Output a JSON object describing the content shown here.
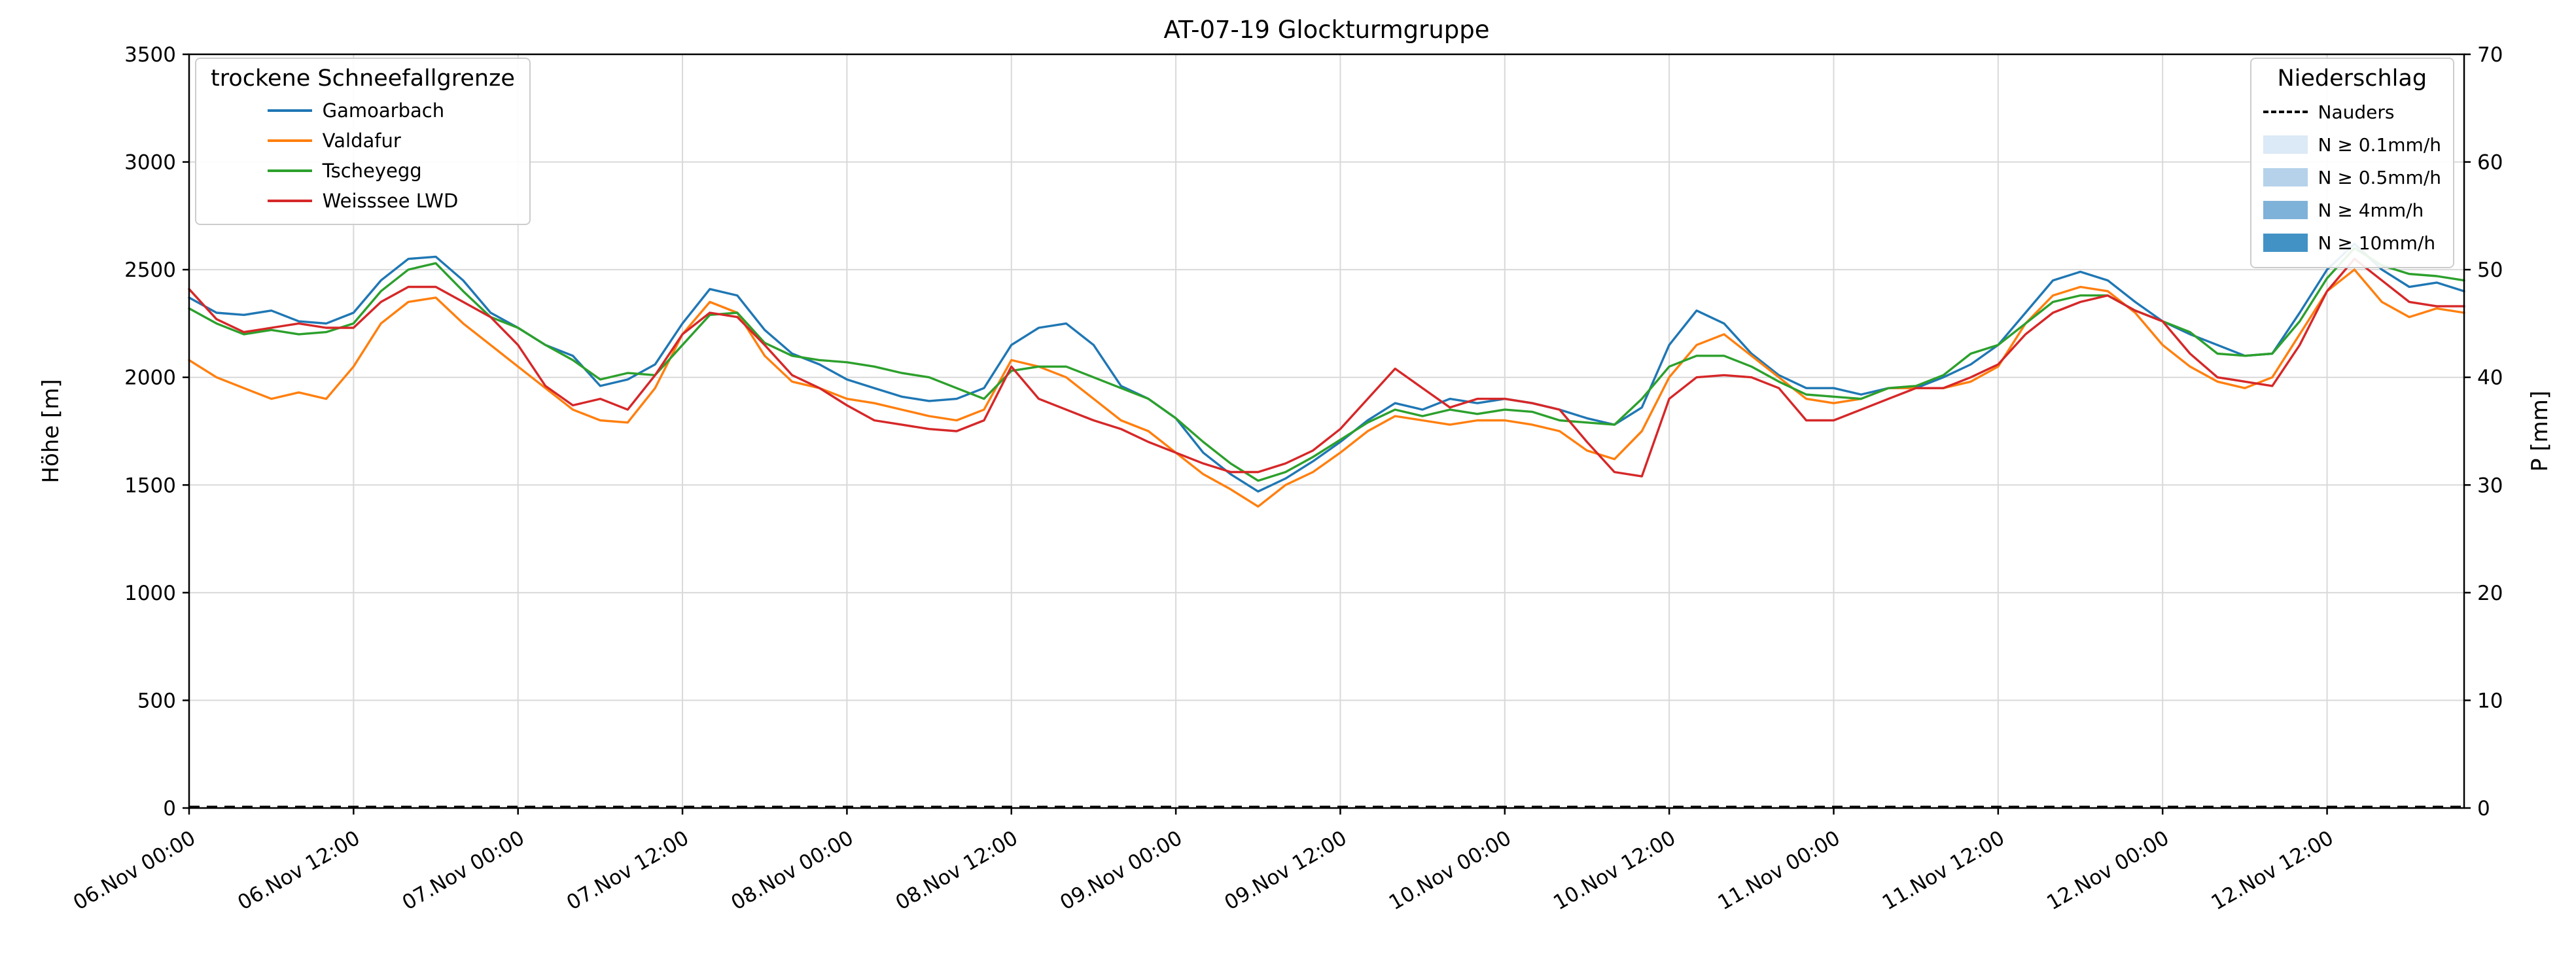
{
  "chart_data": {
    "type": "line",
    "title": "AT-07-19 Glockturmgruppe",
    "ylabel_left": "Höhe [m]",
    "ylabel_right": "P [mm]",
    "ylim_left": [
      0,
      3500
    ],
    "ylim_right": [
      0,
      70
    ],
    "yticks_left": [
      0,
      500,
      1000,
      1500,
      2000,
      2500,
      3000,
      3500
    ],
    "yticks_right": [
      0,
      10,
      20,
      30,
      40,
      50,
      60,
      70
    ],
    "grid": true,
    "xlim_hours": [
      0,
      166
    ],
    "sample_interval_hours": 2,
    "xtick_hours": [
      0,
      12,
      24,
      36,
      48,
      60,
      72,
      84,
      96,
      108,
      120,
      132,
      144,
      156
    ],
    "xtick_labels": [
      "06.Nov 00:00",
      "06.Nov 12:00",
      "07.Nov 00:00",
      "07.Nov 12:00",
      "08.Nov 00:00",
      "08.Nov 12:00",
      "09.Nov 00:00",
      "09.Nov 12:00",
      "10.Nov 00:00",
      "10.Nov 12:00",
      "11.Nov 00:00",
      "11.Nov 12:00",
      "12.Nov 00:00",
      "12.Nov 12:00"
    ],
    "series": [
      {
        "name": "Gamoarbach",
        "color": "#1f77b4",
        "values": [
          2370,
          2300,
          2290,
          2310,
          2260,
          2250,
          2300,
          2450,
          2550,
          2560,
          2450,
          2300,
          2230,
          2150,
          2100,
          1960,
          1990,
          2060,
          2250,
          2410,
          2380,
          2220,
          2110,
          2060,
          1990,
          1950,
          1910,
          1890,
          1900,
          1950,
          2150,
          2230,
          2250,
          2150,
          1960,
          1900,
          1810,
          1650,
          1550,
          1470,
          1530,
          1610,
          1700,
          1800,
          1880,
          1850,
          1900,
          1880,
          1900,
          1880,
          1850,
          1810,
          1780,
          1860,
          2150,
          2310,
          2250,
          2110,
          2010,
          1950,
          1950,
          1920,
          1950,
          1950,
          2000,
          2060,
          2150,
          2300,
          2450,
          2490,
          2450,
          2350,
          2260,
          2200,
          2150,
          2100,
          2110,
          2300,
          2500,
          2620,
          2500,
          2420,
          2440,
          2400
        ]
      },
      {
        "name": "Valdafur",
        "color": "#ff7f0e",
        "values": [
          2080,
          2000,
          1950,
          1900,
          1930,
          1900,
          2050,
          2250,
          2350,
          2370,
          2250,
          2150,
          2050,
          1950,
          1850,
          1800,
          1790,
          1950,
          2200,
          2350,
          2300,
          2100,
          1980,
          1950,
          1900,
          1880,
          1850,
          1820,
          1800,
          1850,
          2080,
          2050,
          2000,
          1900,
          1800,
          1750,
          1650,
          1550,
          1480,
          1400,
          1500,
          1560,
          1650,
          1750,
          1820,
          1800,
          1780,
          1800,
          1800,
          1780,
          1750,
          1660,
          1620,
          1750,
          2000,
          2150,
          2200,
          2100,
          2000,
          1900,
          1880,
          1900,
          1950,
          1950,
          1950,
          1980,
          2050,
          2250,
          2380,
          2420,
          2400,
          2300,
          2150,
          2050,
          1980,
          1950,
          2000,
          2200,
          2400,
          2500,
          2350,
          2280,
          2320,
          2300
        ]
      },
      {
        "name": "Tscheyegg",
        "color": "#2ca02c",
        "values": [
          2320,
          2250,
          2200,
          2220,
          2200,
          2210,
          2250,
          2400,
          2500,
          2530,
          2400,
          2280,
          2230,
          2150,
          2080,
          1990,
          2020,
          2010,
          2150,
          2290,
          2300,
          2160,
          2100,
          2080,
          2070,
          2050,
          2020,
          2000,
          1950,
          1900,
          2030,
          2050,
          2050,
          2000,
          1950,
          1900,
          1810,
          1700,
          1600,
          1520,
          1560,
          1630,
          1710,
          1790,
          1850,
          1820,
          1850,
          1830,
          1850,
          1840,
          1800,
          1790,
          1780,
          1900,
          2050,
          2100,
          2100,
          2050,
          1980,
          1920,
          1910,
          1900,
          1950,
          1960,
          2010,
          2110,
          2150,
          2250,
          2350,
          2380,
          2380,
          2310,
          2260,
          2210,
          2110,
          2100,
          2110,
          2260,
          2460,
          2600,
          2520,
          2480,
          2470,
          2450
        ]
      },
      {
        "name": "Weisssee LWD",
        "color": "#d62728",
        "values": [
          2410,
          2270,
          2210,
          2230,
          2250,
          2230,
          2230,
          2350,
          2420,
          2420,
          2350,
          2280,
          2150,
          1960,
          1870,
          1900,
          1850,
          2010,
          2200,
          2300,
          2280,
          2150,
          2010,
          1950,
          1870,
          1800,
          1780,
          1760,
          1750,
          1800,
          2050,
          1900,
          1850,
          1800,
          1760,
          1700,
          1650,
          1600,
          1560,
          1560,
          1600,
          1660,
          1760,
          1900,
          2040,
          1950,
          1860,
          1900,
          1900,
          1880,
          1850,
          1700,
          1560,
          1540,
          1900,
          2000,
          2010,
          2000,
          1950,
          1800,
          1800,
          1850,
          1900,
          1950,
          1950,
          2000,
          2060,
          2200,
          2300,
          2350,
          2380,
          2310,
          2260,
          2110,
          2000,
          1980,
          1960,
          2150,
          2400,
          2550,
          2450,
          2350,
          2330,
          2330
        ]
      }
    ],
    "precipitation": {
      "name": "Nauders",
      "style": "dashed-black-line",
      "constant_value_mm": 0
    },
    "legend_left": {
      "title": "trockene Schneefallgrenze",
      "entries": [
        "Gamoarbach",
        "Valdafur",
        "Tscheyegg",
        "Weisssee LWD"
      ]
    },
    "legend_right": {
      "title": "Niederschlag",
      "line_entry": "Nauders",
      "patch_entries": [
        {
          "label": "N ≥ 0.1mm/h",
          "color": "#dce9f6"
        },
        {
          "label": "N ≥ 0.5mm/h",
          "color": "#b5d2ea"
        },
        {
          "label": "N ≥ 4mm/h",
          "color": "#7fb2d9"
        },
        {
          "label": "N ≥ 10mm/h",
          "color": "#4292c6"
        }
      ]
    },
    "colors": {
      "grid": "#d9d9d9",
      "spine": "#000000"
    }
  }
}
